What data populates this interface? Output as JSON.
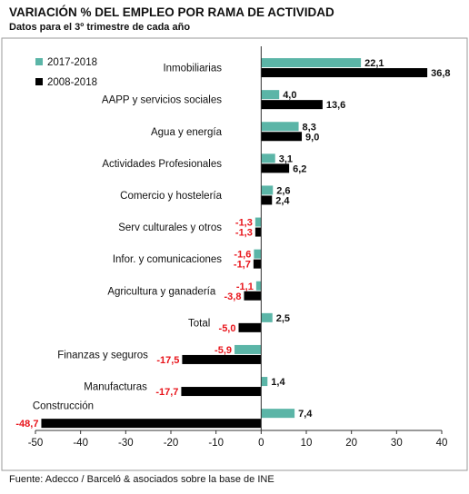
{
  "chart_data": {
    "type": "bar",
    "orientation": "horizontal",
    "title": "VARIACIÓN % DEL EMPLEO POR RAMA DE ACTIVIDAD",
    "subtitle": "Datos para el 3º trimestre de cada año",
    "source": "Fuente: Adecco / Barceló & asociados sobre la base de INE",
    "categories": [
      "Inmobiliarias",
      "AAPP y servicios sociales",
      "Agua y energía",
      "Actividades Profesionales",
      "Comercio y hostelería",
      "Serv culturales y otros",
      "Infor. y comunicaciones",
      "Agricultura y ganadería",
      "Total",
      "Finanzas y seguros",
      "Manufacturas",
      "Construcción"
    ],
    "series": [
      {
        "name": "2017-2018",
        "color": "#5BB5A7",
        "values": [
          22.1,
          4.0,
          8.3,
          3.1,
          2.6,
          -1.3,
          -1.6,
          -1.1,
          2.5,
          -5.9,
          1.4,
          7.4
        ],
        "labels": [
          "22,1",
          "4,0",
          "8,3",
          "3,1",
          "2,6",
          "-1,3",
          "-1,6",
          "-1,1",
          "2,5",
          "-5,9",
          "1,4",
          "7,4"
        ]
      },
      {
        "name": "2008-2018",
        "color": "#000000",
        "values": [
          36.8,
          13.6,
          9.0,
          6.2,
          2.4,
          -1.3,
          -1.7,
          -3.8,
          -5.0,
          -17.5,
          -17.7,
          -48.7
        ],
        "labels": [
          "36,8",
          "13,6",
          "9,0",
          "6,2",
          "2,4",
          "-1,3",
          "-1,7",
          "-3,8",
          "-5,0",
          "-17,5",
          "-17,7",
          "-48,7"
        ]
      }
    ],
    "xlim": [
      -50,
      40
    ],
    "xticks": [
      "-50",
      "-40",
      "-30",
      "-20",
      "-10",
      "0",
      "10",
      "20",
      "30",
      "40"
    ],
    "negative_label_color": "#E8141B",
    "legend_position": "top-left",
    "grid": false
  }
}
